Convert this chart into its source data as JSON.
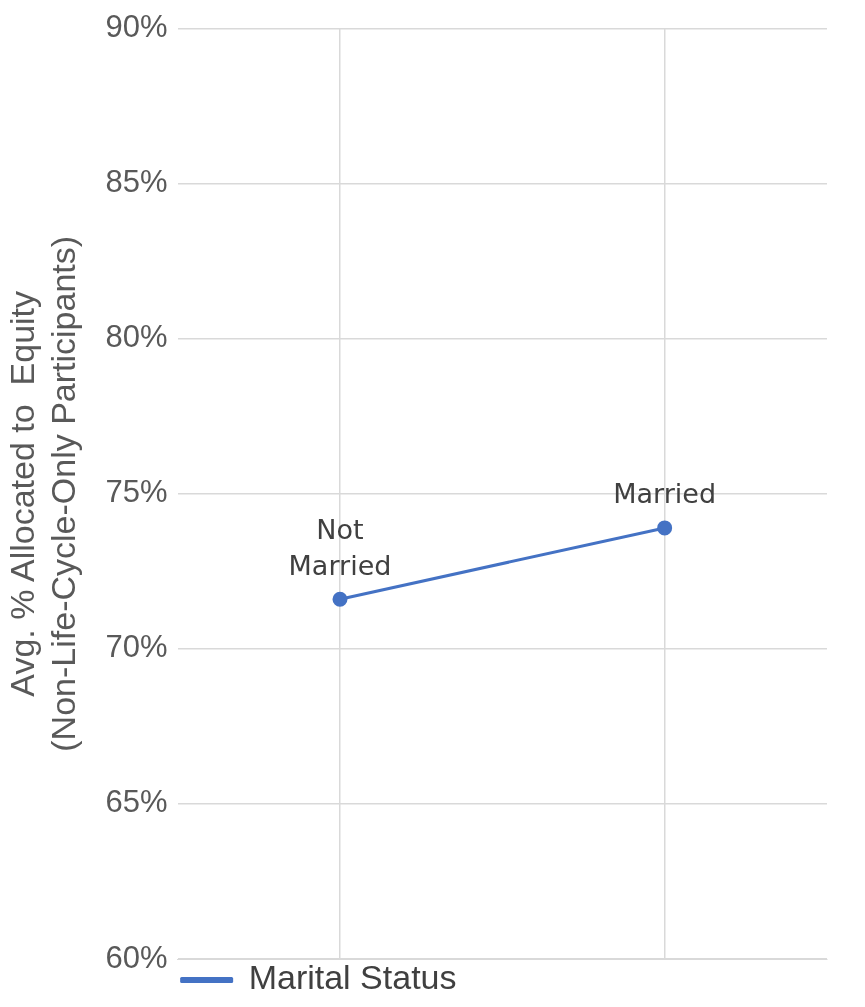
{
  "chart_data": {
    "type": "line",
    "ylabel": "Avg. % Allocated to  Equity\n(Non-Life-Cycle-Only Participants)",
    "categories": [
      "Not Married",
      "Married"
    ],
    "series": [
      {
        "name": "Marital Status",
        "color": "#4472c4",
        "values": [
          71.6,
          73.9
        ]
      }
    ],
    "ylim": [
      60,
      90
    ],
    "yticks": [
      {
        "value": 60,
        "label": "60%"
      },
      {
        "value": 65,
        "label": "65%"
      },
      {
        "value": 70,
        "label": "70%"
      },
      {
        "value": 75,
        "label": "75%"
      },
      {
        "value": 80,
        "label": "80%"
      },
      {
        "value": 85,
        "label": "85%"
      },
      {
        "value": 90,
        "label": "90%"
      }
    ],
    "grid": true,
    "legend": "bottom",
    "marker": "circle",
    "line_style": "solid"
  }
}
